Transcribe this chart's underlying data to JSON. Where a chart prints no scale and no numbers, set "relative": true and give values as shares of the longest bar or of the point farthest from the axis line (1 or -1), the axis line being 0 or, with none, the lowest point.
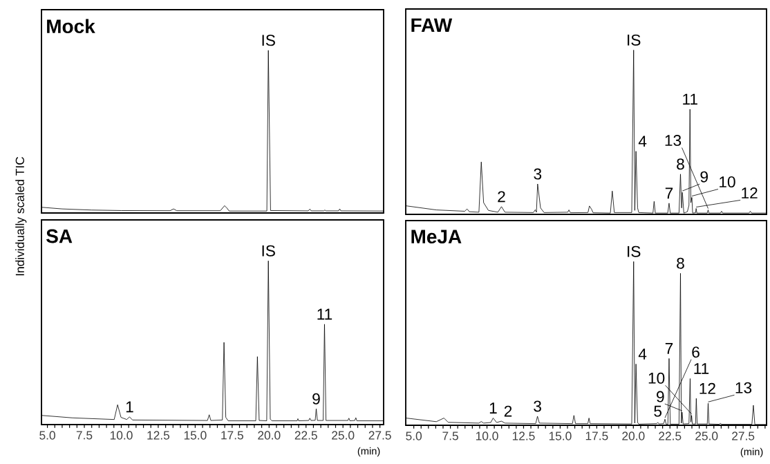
{
  "chart_data": [
    {
      "type": "line",
      "title": "Mock",
      "relative": true,
      "xlim": [
        4.6,
        27.75
      ],
      "tick_labels": false,
      "ylabel": "Individually scaled TIC",
      "x": [
        4.61,
        6.0,
        8.0,
        10.0,
        13.3,
        13.54,
        13.75,
        16.7,
        16.99,
        17.15,
        17.3,
        19.85,
        19.95,
        20.1,
        22.65,
        22.76,
        22.85,
        23.7,
        23.77,
        23.85,
        24.7,
        24.78,
        24.86,
        27.74
      ],
      "series": [
        {
          "color": "#000000",
          "values": [
            0.035,
            0.025,
            0.018,
            0.015,
            0.014,
            0.025,
            0.014,
            0.014,
            0.045,
            0.03,
            0.012,
            0.012,
            1.0,
            0.015,
            0.013,
            0.024,
            0.013,
            0.013,
            0.018,
            0.013,
            0.013,
            0.025,
            0.013,
            0.012
          ]
        }
      ],
      "annotations": [
        {
          "text": "IS",
          "x": 19.95,
          "y": 1.0
        }
      ]
    },
    {
      "type": "line",
      "title": "FAW",
      "relative": true,
      "xlim": [
        4.45,
        29.1
      ],
      "tick_labels": false,
      "x": [
        4.47,
        6.54,
        8.48,
        8.64,
        8.8,
        9.45,
        9.61,
        9.77,
        10.1,
        10.74,
        10.99,
        11.23,
        13.17,
        13.3,
        13.38,
        13.46,
        13.66,
        13.9,
        15.52,
        15.6,
        15.7,
        16.9,
        17.0,
        17.14,
        17.25,
        18.43,
        18.56,
        18.7,
        19.89,
        20.02,
        20.1,
        20.18,
        20.29,
        20.37,
        21.34,
        21.42,
        21.5,
        22.35,
        22.44,
        22.52,
        23.12,
        23.22,
        23.3,
        23.35,
        23.45,
        23.69,
        23.8,
        23.87,
        23.93,
        24.0,
        24.05,
        24.25,
        24.29,
        24.34,
        25.05,
        25.11,
        25.16,
        25.95,
        26.03,
        26.1,
        27.9,
        27.99,
        28.08,
        29.1
      ],
      "series": [
        {
          "color": "#000000",
          "values": [
            0.052,
            0.027,
            0.019,
            0.033,
            0.016,
            0.013,
            0.319,
            0.071,
            0.024,
            0.013,
            0.047,
            0.013,
            0.011,
            0.028,
            0.013,
            0.185,
            0.039,
            0.011,
            0.013,
            0.027,
            0.01,
            0.011,
            0.051,
            0.032,
            0.01,
            0.008,
            0.142,
            0.011,
            0.011,
            1.0,
            0.024,
            0.384,
            0.039,
            0.011,
            0.008,
            0.079,
            0.008,
            0.008,
            0.068,
            0.008,
            0.008,
            0.245,
            0.039,
            0.134,
            0.008,
            0.016,
            0.055,
            0.64,
            0.071,
            0.103,
            0.008,
            0.01,
            0.036,
            0.008,
            0.008,
            0.027,
            0.008,
            0.008,
            0.019,
            0.008,
            0.008,
            0.019,
            0.008,
            0.008
          ]
        }
      ],
      "annotations": [
        {
          "text": "IS",
          "x": 20.02,
          "y": 1.0
        },
        {
          "text": "2",
          "x": 10.99,
          "y": 0.047
        },
        {
          "text": "3",
          "x": 13.46,
          "y": 0.185
        },
        {
          "text": "4",
          "x": 20.18,
          "y": 0.384
        },
        {
          "text": "7",
          "x": 22.44,
          "y": 0.068
        },
        {
          "text": "8",
          "x": 23.22,
          "y": 0.245
        },
        {
          "text": "9",
          "x": 23.35,
          "y": 0.134
        },
        {
          "text": "10",
          "x": 24.0,
          "y": 0.103
        },
        {
          "text": "11",
          "x": 23.87,
          "y": 0.64
        },
        {
          "text": "12",
          "x": 24.29,
          "y": 0.036
        },
        {
          "text": "13",
          "x": 25.11,
          "y": 0.027
        }
      ]
    },
    {
      "type": "line",
      "title": "SA",
      "relative": true,
      "xlim": [
        4.6,
        27.75
      ],
      "tick_labels": "x",
      "xlabel": "(min)",
      "xticks": [
        {
          "value": 5,
          "label": "5.0"
        },
        {
          "value": 5.5,
          "label": null
        },
        {
          "value": 6,
          "label": null
        },
        {
          "value": 6.5,
          "label": null
        },
        {
          "value": 7,
          "label": null
        },
        {
          "value": 7.5,
          "label": "7.5"
        },
        {
          "value": 8,
          "label": null
        },
        {
          "value": 8.5,
          "label": null
        },
        {
          "value": 9,
          "label": null
        },
        {
          "value": 9.5,
          "label": null
        },
        {
          "value": 10,
          "label": "10.0"
        },
        {
          "value": 10.5,
          "label": null
        },
        {
          "value": 11,
          "label": null
        },
        {
          "value": 11.5,
          "label": null
        },
        {
          "value": 12,
          "label": null
        },
        {
          "value": 12.5,
          "label": "12.5"
        },
        {
          "value": 13,
          "label": null
        },
        {
          "value": 13.5,
          "label": null
        },
        {
          "value": 14,
          "label": null
        },
        {
          "value": 14.5,
          "label": null
        },
        {
          "value": 15,
          "label": "15.0"
        },
        {
          "value": 15.5,
          "label": null
        },
        {
          "value": 16,
          "label": null
        },
        {
          "value": 16.5,
          "label": null
        },
        {
          "value": 17,
          "label": null
        },
        {
          "value": 17.5,
          "label": "17.5"
        },
        {
          "value": 18,
          "label": null
        },
        {
          "value": 18.5,
          "label": null
        },
        {
          "value": 19,
          "label": null
        },
        {
          "value": 19.5,
          "label": null
        },
        {
          "value": 20,
          "label": "20.0"
        },
        {
          "value": 20.5,
          "label": null
        },
        {
          "value": 21,
          "label": null
        },
        {
          "value": 21.5,
          "label": null
        },
        {
          "value": 22,
          "label": null
        },
        {
          "value": 22.5,
          "label": "22.5"
        },
        {
          "value": 23,
          "label": null
        },
        {
          "value": 23.5,
          "label": null
        },
        {
          "value": 24,
          "label": null
        },
        {
          "value": 24.5,
          "label": null
        },
        {
          "value": 25,
          "label": "25.0"
        },
        {
          "value": 25.5,
          "label": null
        },
        {
          "value": 26,
          "label": null
        },
        {
          "value": 26.5,
          "label": null
        },
        {
          "value": 27,
          "label": null
        },
        {
          "value": 27.5,
          "label": "27.5"
        }
      ],
      "x": [
        4.61,
        6.71,
        9.52,
        9.75,
        9.98,
        10.37,
        10.56,
        10.76,
        15.83,
        15.95,
        16.06,
        16.84,
        16.95,
        17.07,
        17.23,
        19.1,
        19.21,
        19.33,
        19.84,
        19.95,
        20.08,
        20.19,
        21.9,
        21.95,
        22.0,
        22.68,
        22.76,
        22.84,
        23.12,
        23.19,
        23.27,
        23.66,
        23.75,
        23.85,
        25.33,
        25.4,
        25.47,
        25.8,
        25.87,
        25.94,
        27.74
      ],
      "series": [
        {
          "color": "#000000",
          "values": [
            0.056,
            0.041,
            0.031,
            0.121,
            0.044,
            0.031,
            0.047,
            0.028,
            0.025,
            0.06,
            0.025,
            0.028,
            0.502,
            0.044,
            0.023,
            0.023,
            0.415,
            0.025,
            0.023,
            1.0,
            0.033,
            0.023,
            0.023,
            0.036,
            0.023,
            0.025,
            0.039,
            0.025,
            0.026,
            0.096,
            0.025,
            0.025,
            0.613,
            0.025,
            0.025,
            0.039,
            0.023,
            0.025,
            0.042,
            0.023,
            0.023
          ]
        }
      ],
      "annotations": [
        {
          "text": "1",
          "x": 10.56,
          "y": 0.047
        },
        {
          "text": "IS",
          "x": 19.95,
          "y": 1.0
        },
        {
          "text": "9",
          "x": 23.19,
          "y": 0.096
        },
        {
          "text": "11",
          "x": 23.75,
          "y": 0.613
        }
      ]
    },
    {
      "type": "line",
      "title": "MeJA",
      "relative": true,
      "xlim": [
        4.45,
        29.1
      ],
      "tick_labels": "x",
      "xlabel": "(min)",
      "xticks": [
        {
          "value": 5,
          "label": "5.0"
        },
        {
          "value": 5.5,
          "label": null
        },
        {
          "value": 6,
          "label": null
        },
        {
          "value": 6.5,
          "label": null
        },
        {
          "value": 7,
          "label": null
        },
        {
          "value": 7.5,
          "label": "7.5"
        },
        {
          "value": 8,
          "label": null
        },
        {
          "value": 8.5,
          "label": null
        },
        {
          "value": 9,
          "label": null
        },
        {
          "value": 9.5,
          "label": null
        },
        {
          "value": 10,
          "label": "10.0"
        },
        {
          "value": 10.5,
          "label": null
        },
        {
          "value": 11,
          "label": null
        },
        {
          "value": 11.5,
          "label": null
        },
        {
          "value": 12,
          "label": null
        },
        {
          "value": 12.5,
          "label": "12.5"
        },
        {
          "value": 13,
          "label": null
        },
        {
          "value": 13.5,
          "label": null
        },
        {
          "value": 14,
          "label": null
        },
        {
          "value": 14.5,
          "label": null
        },
        {
          "value": 15,
          "label": "15.0"
        },
        {
          "value": 15.5,
          "label": null
        },
        {
          "value": 16,
          "label": null
        },
        {
          "value": 16.5,
          "label": null
        },
        {
          "value": 17,
          "label": null
        },
        {
          "value": 17.5,
          "label": "17.5"
        },
        {
          "value": 18,
          "label": null
        },
        {
          "value": 18.5,
          "label": null
        },
        {
          "value": 19,
          "label": null
        },
        {
          "value": 19.5,
          "label": null
        },
        {
          "value": 20,
          "label": "20.0"
        },
        {
          "value": 20.5,
          "label": null
        },
        {
          "value": 21,
          "label": null
        },
        {
          "value": 21.5,
          "label": null
        },
        {
          "value": 22,
          "label": null
        },
        {
          "value": 22.5,
          "label": "22.5"
        },
        {
          "value": 23,
          "label": null
        },
        {
          "value": 23.5,
          "label": null
        },
        {
          "value": 24,
          "label": null
        },
        {
          "value": 24.5,
          "label": null
        },
        {
          "value": 25,
          "label": "25.0"
        },
        {
          "value": 25.5,
          "label": null
        },
        {
          "value": 26,
          "label": null
        },
        {
          "value": 26.5,
          "label": null
        },
        {
          "value": 27,
          "label": null
        },
        {
          "value": 27.5,
          "label": "27.5"
        },
        {
          "value": 28,
          "label": null
        },
        {
          "value": 28.5,
          "label": null
        },
        {
          "value": 29,
          "label": null
        }
      ],
      "x": [
        4.47,
        6.54,
        7.06,
        7.35,
        9.45,
        9.61,
        9.77,
        10.26,
        10.42,
        10.66,
        10.99,
        11.23,
        13.33,
        13.45,
        13.58,
        15.84,
        15.94,
        16.05,
        16.89,
        16.97,
        17.05,
        19.89,
        20.02,
        20.1,
        20.18,
        20.29,
        20.37,
        21.59,
        21.67,
        21.75,
        22.07,
        22.16,
        22.24,
        22.36,
        22.44,
        22.52,
        23.12,
        23.22,
        23.28,
        23.33,
        23.4,
        23.8,
        23.88,
        23.93,
        23.98,
        24.03,
        24.25,
        24.3,
        24.36,
        25.05,
        25.11,
        25.17,
        25.88,
        25.95,
        26.02,
        28.1,
        28.2,
        28.3,
        29.1
      ],
      "series": [
        {
          "color": "#000000",
          "values": [
            0.044,
            0.022,
            0.044,
            0.018,
            0.013,
            0.023,
            0.013,
            0.017,
            0.044,
            0.017,
            0.025,
            0.013,
            0.01,
            0.055,
            0.013,
            0.01,
            0.06,
            0.01,
            0.01,
            0.044,
            0.01,
            0.008,
            1.0,
            0.013,
            0.374,
            0.017,
            0.007,
            0.01,
            0.017,
            0.008,
            0.01,
            0.037,
            0.007,
            0.007,
            0.408,
            0.007,
            0.007,
            0.928,
            0.013,
            0.08,
            0.008,
            0.01,
            0.285,
            0.02,
            0.06,
            0.008,
            0.008,
            0.164,
            0.008,
            0.008,
            0.134,
            0.008,
            0.006,
            0.013,
            0.006,
            0.006,
            0.122,
            0.005,
            0.005
          ]
        }
      ],
      "annotations": [
        {
          "text": "1",
          "x": 10.42,
          "y": 0.044
        },
        {
          "text": "2",
          "x": 10.99,
          "y": 0.025
        },
        {
          "text": "3",
          "x": 13.45,
          "y": 0.055
        },
        {
          "text": "IS",
          "x": 20.02,
          "y": 1.0
        },
        {
          "text": "4",
          "x": 20.18,
          "y": 0.374
        },
        {
          "text": "5",
          "x": 21.67,
          "y": 0.017
        },
        {
          "text": "6",
          "x": 22.16,
          "y": 0.037
        },
        {
          "text": "7",
          "x": 22.44,
          "y": 0.408
        },
        {
          "text": "8",
          "x": 23.22,
          "y": 0.928
        },
        {
          "text": "9",
          "x": 23.33,
          "y": 0.08
        },
        {
          "text": "10",
          "x": 23.98,
          "y": 0.06
        },
        {
          "text": "11",
          "x": 23.88,
          "y": 0.285
        },
        {
          "text": "12",
          "x": 24.3,
          "y": 0.164
        },
        {
          "text": "13",
          "x": 25.11,
          "y": 0.134
        }
      ]
    }
  ]
}
